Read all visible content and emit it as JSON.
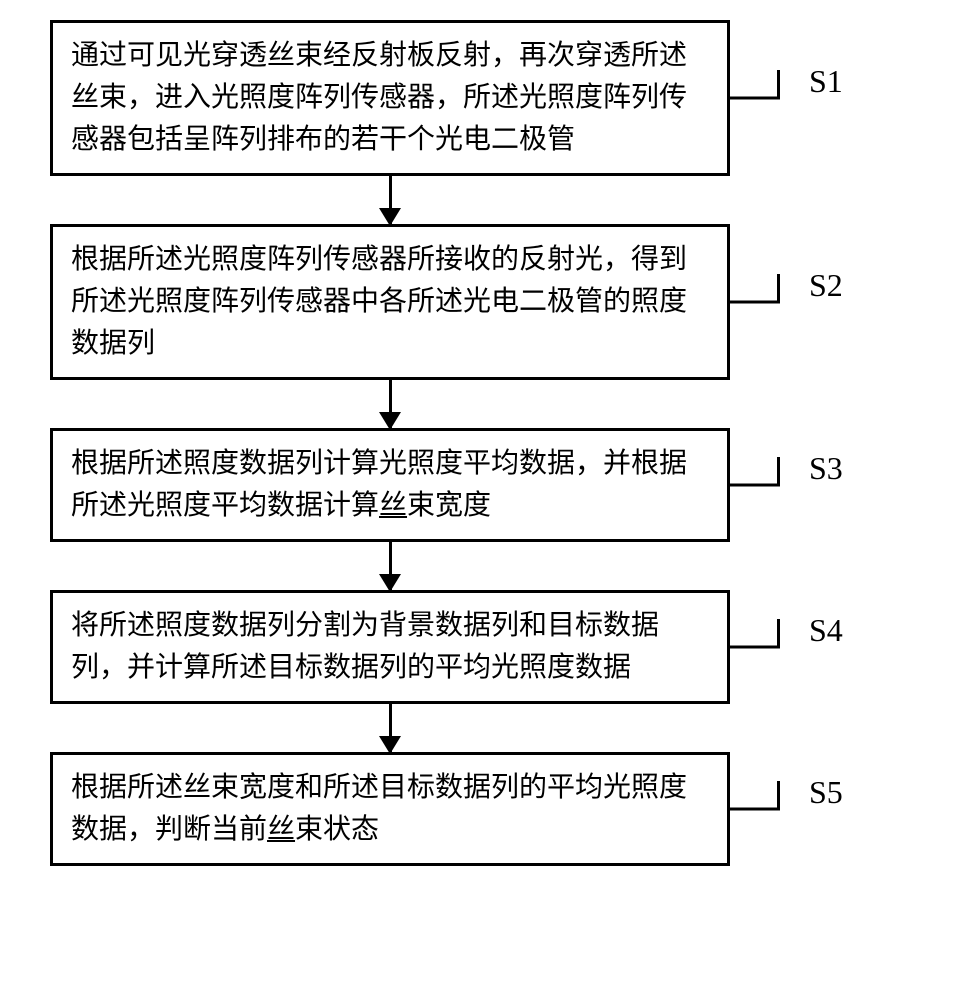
{
  "flowchart": {
    "type": "flowchart",
    "background_color": "#ffffff",
    "box_border_color": "#000000",
    "box_border_width": 3,
    "text_color": "#000000",
    "font_size_box": 28,
    "font_size_label": 32,
    "arrow_color": "#000000",
    "steps": [
      {
        "label": "S1",
        "text": "通过可见光穿透丝束经反射板反射，再次穿透所述丝束，进入光照度阵列传感器，所述光照度阵列传感器包括呈阵列排布的若干个光电二极管"
      },
      {
        "label": "S2",
        "text": "根据所述光照度阵列传感器所接收的反射光，得到所述光照度阵列传感器中各所述光电二极管的照度数据列"
      },
      {
        "label": "S3",
        "text_prefix": "根据所述照度数据列计算光照度平均数据，并根据所述光照度平均数据计算",
        "text_underlined": "丝",
        "text_suffix": "束宽度"
      },
      {
        "label": "S4",
        "text": "将所述照度数据列分割为背景数据列和目标数据列，并计算所述目标数据列的平均光照度数据"
      },
      {
        "label": "S5",
        "text_prefix": "根据所述丝束宽度和所述目标数据列的平均光照度数据，判断当前",
        "text_underlined": "丝",
        "text_suffix": "束状态"
      }
    ]
  }
}
